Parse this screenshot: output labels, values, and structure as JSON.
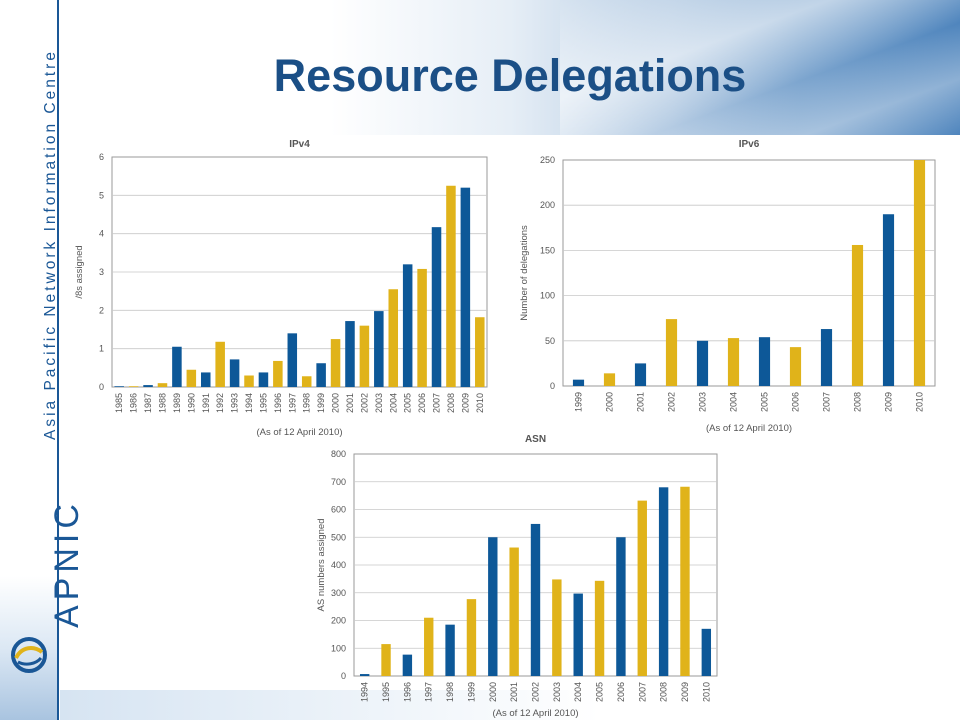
{
  "title": "Resource Delegations",
  "sidebar": {
    "org_name": "Asia Pacific Network Information Centre",
    "brand": "APNIC"
  },
  "colors": {
    "blue": "#0d5898",
    "gold": "#e0b31a",
    "title": "#1b4f86"
  },
  "chart_data": [
    {
      "type": "bar",
      "title": "IPv4",
      "ylabel": "/8s assigned",
      "note": "(As of 12 April 2010)",
      "ylim": [
        0,
        6
      ],
      "yticks": [
        0,
        1,
        2,
        3,
        4,
        5,
        6
      ],
      "grid": true,
      "categories": [
        "1985",
        "1986",
        "1987",
        "1988",
        "1989",
        "1990",
        "1991",
        "1992",
        "1993",
        "1994",
        "1995",
        "1996",
        "1997",
        "1998",
        "1999",
        "2000",
        "2001",
        "2002",
        "2003",
        "2004",
        "2005",
        "2006",
        "2007",
        "2008",
        "2009",
        "2010"
      ],
      "values": [
        0.02,
        0.02,
        0.05,
        0.1,
        1.05,
        0.45,
        0.38,
        1.18,
        0.72,
        0.3,
        0.38,
        0.68,
        1.4,
        0.28,
        0.62,
        1.25,
        1.72,
        1.6,
        1.98,
        2.55,
        3.2,
        3.08,
        4.17,
        5.25,
        5.2,
        1.82
      ],
      "bar_colors": [
        "blue",
        "gold",
        "blue",
        "gold",
        "blue",
        "gold",
        "blue",
        "gold",
        "blue",
        "gold",
        "blue",
        "gold",
        "blue",
        "gold",
        "blue",
        "gold",
        "blue",
        "gold",
        "blue",
        "gold",
        "blue",
        "gold",
        "blue",
        "gold",
        "blue",
        "gold"
      ]
    },
    {
      "type": "bar",
      "title": "IPv6",
      "ylabel": "Number of delegations",
      "note": "(As of 12 April 2010)",
      "ylim": [
        0,
        250
      ],
      "yticks": [
        0,
        50,
        100,
        150,
        200,
        250
      ],
      "grid": true,
      "categories": [
        "1999",
        "2000",
        "2001",
        "2002",
        "2003",
        "2004",
        "2005",
        "2006",
        "2007",
        "2008",
        "2009",
        "2010"
      ],
      "values": [
        7,
        14,
        25,
        74,
        50,
        53,
        54,
        43,
        63,
        156,
        190,
        250
      ],
      "bar_colors": [
        "blue",
        "gold",
        "blue",
        "gold",
        "blue",
        "gold",
        "blue",
        "gold",
        "blue",
        "gold",
        "blue",
        "gold"
      ]
    },
    {
      "type": "bar",
      "title": "ASN",
      "ylabel": "AS numbers assigned",
      "note": "(As of 12 April 2010)",
      "ylim": [
        0,
        800
      ],
      "yticks": [
        0,
        100,
        200,
        300,
        400,
        500,
        600,
        700,
        800
      ],
      "grid": true,
      "categories": [
        "1994",
        "1995",
        "1996",
        "1997",
        "1998",
        "1999",
        "2000",
        "2001",
        "2002",
        "2003",
        "2004",
        "2005",
        "2006",
        "2007",
        "2008",
        "2009",
        "2010"
      ],
      "values": [
        7,
        115,
        77,
        210,
        185,
        277,
        500,
        463,
        548,
        348,
        297,
        343,
        500,
        632,
        680,
        682,
        170
      ],
      "bar_colors": [
        "blue",
        "gold",
        "blue",
        "gold",
        "blue",
        "gold",
        "blue",
        "gold",
        "blue",
        "gold",
        "blue",
        "gold",
        "blue",
        "gold",
        "blue",
        "gold",
        "blue"
      ]
    }
  ]
}
